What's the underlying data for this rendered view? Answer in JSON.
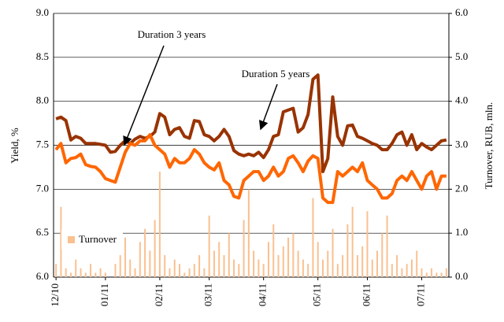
{
  "chart_data": {
    "type": "line",
    "categories": [
      "12/10",
      null,
      null,
      null,
      null,
      null,
      null,
      null,
      null,
      null,
      "01/11",
      null,
      null,
      null,
      null,
      null,
      null,
      null,
      null,
      null,
      null,
      "02/11",
      null,
      null,
      null,
      null,
      null,
      null,
      null,
      null,
      null,
      "03/11",
      null,
      null,
      null,
      null,
      null,
      null,
      null,
      null,
      null,
      null,
      "04/11",
      null,
      null,
      null,
      null,
      null,
      null,
      null,
      null,
      null,
      null,
      "05/11",
      null,
      null,
      null,
      null,
      null,
      null,
      null,
      null,
      null,
      "06/11",
      null,
      null,
      null,
      null,
      null,
      null,
      null,
      null,
      null,
      null,
      "07/11",
      null,
      null,
      null,
      null,
      null
    ],
    "series": [
      {
        "name": "Duration 5 years",
        "color": "#993300",
        "values": [
          7.8,
          7.82,
          7.78,
          7.56,
          7.6,
          7.58,
          7.52,
          7.52,
          7.52,
          7.51,
          7.5,
          7.42,
          7.43,
          7.5,
          7.55,
          7.52,
          7.57,
          7.6,
          7.58,
          7.6,
          7.65,
          7.86,
          7.82,
          7.62,
          7.68,
          7.7,
          7.6,
          7.58,
          7.78,
          7.77,
          7.62,
          7.6,
          7.55,
          7.6,
          7.68,
          7.6,
          7.44,
          7.4,
          7.38,
          7.4,
          7.38,
          7.42,
          7.36,
          7.45,
          7.6,
          7.62,
          7.88,
          7.9,
          7.92,
          7.65,
          7.7,
          7.85,
          8.25,
          8.3,
          7.2,
          7.35,
          8.05,
          7.6,
          7.5,
          7.72,
          7.73,
          7.6,
          7.58,
          7.55,
          7.52,
          7.5,
          7.45,
          7.45,
          7.52,
          7.62,
          7.65,
          7.5,
          7.62,
          7.45,
          7.52,
          7.48,
          7.45,
          7.5,
          7.55,
          7.56
        ]
      },
      {
        "name": "Duration 3 years",
        "color": "#ff6600",
        "values": [
          7.45,
          7.52,
          7.3,
          7.35,
          7.36,
          7.4,
          7.28,
          7.26,
          7.25,
          7.2,
          7.12,
          7.1,
          7.08,
          7.25,
          7.42,
          7.52,
          7.5,
          7.55,
          7.55,
          7.62,
          7.5,
          7.45,
          7.4,
          7.25,
          7.35,
          7.3,
          7.3,
          7.35,
          7.45,
          7.4,
          7.3,
          7.25,
          7.22,
          7.3,
          7.1,
          7.05,
          6.92,
          6.9,
          7.1,
          7.15,
          7.2,
          7.2,
          7.1,
          7.15,
          7.25,
          7.15,
          7.2,
          7.35,
          7.38,
          7.3,
          7.2,
          7.32,
          7.38,
          7.35,
          6.9,
          6.85,
          6.85,
          7.2,
          7.15,
          7.2,
          7.25,
          7.2,
          7.3,
          7.1,
          7.05,
          7.0,
          6.9,
          6.9,
          6.95,
          7.1,
          7.15,
          7.1,
          7.2,
          7.1,
          7.0,
          7.15,
          7.2,
          7.0,
          7.15,
          7.15
        ]
      },
      {
        "name": "Turnover",
        "color": "#fac090",
        "axis": "y2",
        "type": "bar",
        "values": [
          0.3,
          1.6,
          0.2,
          0.1,
          0.4,
          0.2,
          0.1,
          0.3,
          0.1,
          0.2,
          0.1,
          0.0,
          0.3,
          0.5,
          0.9,
          0.4,
          0.2,
          0.8,
          1.1,
          0.6,
          1.3,
          2.4,
          0.5,
          0.2,
          0.4,
          0.3,
          0.1,
          0.2,
          0.3,
          0.5,
          0.2,
          1.4,
          0.6,
          0.8,
          0.5,
          1.0,
          0.4,
          0.3,
          1.3,
          2.0,
          0.6,
          0.4,
          0.3,
          0.8,
          1.2,
          0.5,
          0.7,
          0.9,
          1.0,
          0.6,
          0.4,
          0.3,
          1.8,
          0.8,
          0.4,
          0.6,
          1.1,
          0.3,
          0.5,
          1.2,
          1.6,
          0.5,
          0.7,
          1.5,
          0.4,
          0.6,
          1.0,
          1.4,
          0.3,
          0.5,
          0.2,
          0.3,
          0.4,
          0.6,
          0.2,
          0.1,
          0.2,
          0.1,
          0.1,
          0.2
        ]
      }
    ],
    "y_label": "Yield, %",
    "y2_label": "Turnover, RUB, mln.",
    "ylim": [
      6,
      9
    ],
    "yticks": [
      {
        "value": 6,
        "label": "6.0"
      },
      6.5,
      {
        "value": 7,
        "label": "7.0"
      },
      7.5,
      {
        "value": 8,
        "label": "8.0"
      },
      8.5,
      {
        "value": 9,
        "label": "9.0"
      }
    ],
    "y2lim": [
      0,
      6
    ],
    "y2ticks": [
      {
        "value": 0,
        "label": "0.0"
      },
      {
        "value": 1,
        "label": "1.0"
      },
      {
        "value": 2,
        "label": "2.0"
      },
      {
        "value": 3,
        "label": "3.0"
      },
      {
        "value": 4,
        "label": "4.0"
      },
      {
        "value": 5,
        "label": "5.0"
      },
      {
        "value": 6,
        "label": "6.0"
      }
    ],
    "grid": true
  }
}
